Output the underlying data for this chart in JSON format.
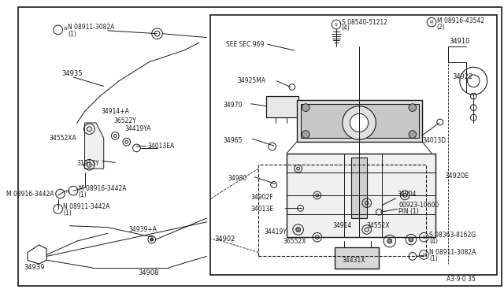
{
  "bg_color": "#ffffff",
  "line_color": "#1a1a1a",
  "text_color": "#1a1a1a",
  "diagram_number": "A3·9·0 35",
  "labels": {
    "top_nut": "N 08911-3082A",
    "top_nut2": "(1)",
    "l34935": "34935",
    "l34914A": "34914+A",
    "l36522Y": "36522Y",
    "l34419YA": "34419YA",
    "l34552XA": "34552XA",
    "l34013EA": "34013EA",
    "l31913Y": "31913Y",
    "l08916_3442A": "M 08916-3442A",
    "l08916_3442A2": "(1)",
    "l08911_3442A": "N 08911-3442A",
    "l08911_3442A2": "(1)",
    "l34939A": "34939+A",
    "l34939": "34939",
    "l34908": "34908",
    "l34902": "34902",
    "see_sec": "SEE SEC.969",
    "l08540_top": "S 08540-51212",
    "l08540_bot": "(4)",
    "l08916_43542_top": "M 08916-43542",
    "l08916_43542_bot": "(2)",
    "l34925MA": "34925MA",
    "l34970": "34970",
    "l34965": "34965",
    "l34980": "34980",
    "l34902F": "34902F",
    "l34013E": "34013E",
    "l34419Y": "34419Y",
    "l36552X": "36552X",
    "l34914": "34914",
    "l34552X": "34552X",
    "l34431X": "34431X",
    "l34904": "34904",
    "l00923_top": "00923-10600",
    "l00923_bot": "PIN (1)",
    "l34013D": "34013D",
    "l34910": "34910",
    "l34922": "34922",
    "l34920E": "34920E",
    "l08363_top": "S 08363-8162G",
    "l08363_bot": "(4)",
    "l08911_3082A_br": "N 08911-3082A",
    "l08911_3082A_br2": "(1)"
  }
}
